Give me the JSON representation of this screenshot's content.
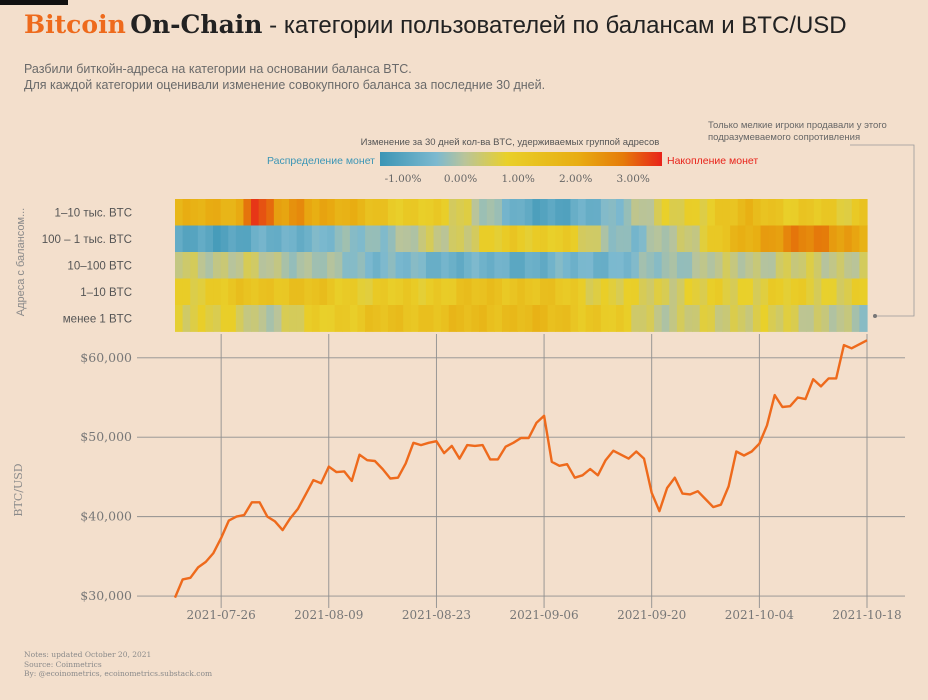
{
  "header": {
    "brand_orange": "Bitcoin",
    "brand_dark": "On-Chain",
    "title_rest": " - категории пользователей по балансам и BTC/USD",
    "subtitle_line1": "Разбили биткойн-адреса на категории на основании баланса BTC.",
    "subtitle_line2": "Для каждой категории оценивали изменение совокупного баланса за последние 30 дней."
  },
  "legend": {
    "title": "Изменение за 30 дней кол-ва BTC, удерживаемых группой адресов",
    "left_label": "Распределение монет",
    "right_label": "Накопление монет",
    "ticks": [
      "-1.00%",
      "0.00%",
      "1.00%",
      "2.00%",
      "3.00%"
    ],
    "tick_values": [
      -1,
      0,
      1,
      2,
      3
    ],
    "range": [
      -1.4,
      3.5
    ]
  },
  "annotation": {
    "line1": "Только мелкие игроки продавали у этого",
    "line2": "подразумеваемого сопротивления"
  },
  "colors": {
    "background": "#f3dfcc",
    "line": "#ee6a1c",
    "grid": "#8f8f8f",
    "left_label": "#3b95b5",
    "right_label": "#e8231a",
    "brand": "#ee6a1c"
  },
  "notes": {
    "line1": "Notes: updated October 20, 2021",
    "line2": "Source: Coinmetrics",
    "line3": "By: @ecoinometrics, ecoinometrics.substack.com"
  },
  "chart_data": [
    {
      "type": "heatmap",
      "ylabel": "Адреса с балансом...",
      "rows": [
        "1–10 тыс. BTC",
        "100 – 1 тыс. BTC",
        "10–100 BTC",
        "1–10 BTC",
        "менее 1 BTC"
      ],
      "x_start": "2021-07-20",
      "x_end": "2021-10-18",
      "anchor_days": [
        0,
        8,
        10,
        13,
        16,
        20,
        25,
        30,
        38,
        42,
        45,
        50,
        55,
        60,
        65,
        70,
        75,
        80,
        85,
        87,
        90
      ],
      "values": [
        [
          1.6,
          1.9,
          3.5,
          2.0,
          2.3,
          1.9,
          1.4,
          1.0,
          0.6,
          -0.3,
          -0.9,
          -0.9,
          -0.7,
          0.2,
          0.6,
          1.0,
          1.5,
          1.1,
          1.0,
          0.7,
          1.2
        ],
        [
          -1.0,
          -0.9,
          -0.8,
          -0.7,
          -0.5,
          -0.4,
          -0.2,
          0.1,
          0.6,
          0.8,
          1.0,
          1.0,
          0.3,
          -0.4,
          0.2,
          0.9,
          1.8,
          2.5,
          2.4,
          2.2,
          2.0
        ],
        [
          0.4,
          0.3,
          0.3,
          0.2,
          0.1,
          -0.1,
          -0.3,
          -0.5,
          -0.6,
          -0.7,
          -0.7,
          -0.6,
          -0.5,
          -0.4,
          0.0,
          0.2,
          0.3,
          0.4,
          0.4,
          0.4,
          0.4
        ],
        [
          0.8,
          1.1,
          1.2,
          1.3,
          1.3,
          1.1,
          0.9,
          0.9,
          1.2,
          1.3,
          1.3,
          1.1,
          0.8,
          0.6,
          0.6,
          0.7,
          0.8,
          0.8,
          0.8,
          0.7,
          0.7
        ],
        [
          0.8,
          0.6,
          0.3,
          0.3,
          0.6,
          1.0,
          1.2,
          1.3,
          1.4,
          1.5,
          1.5,
          1.4,
          1.1,
          0.6,
          0.3,
          0.5,
          0.6,
          0.5,
          0.4,
          0.2,
          -0.2
        ]
      ]
    },
    {
      "type": "line",
      "ylabel": "BTC/USD",
      "ylim": [
        29500,
        63500
      ],
      "yticks": [
        30000,
        40000,
        50000,
        60000
      ],
      "ytick_labels": [
        "$30,000",
        "$40,000",
        "$50,000",
        "$60,000"
      ],
      "xticks": [
        "2021-07-26",
        "2021-08-09",
        "2021-08-23",
        "2021-09-06",
        "2021-09-20",
        "2021-10-04",
        "2021-10-18"
      ],
      "x_start": "2021-07-20",
      "x_end": "2021-10-18",
      "grid": true,
      "series": [
        {
          "values": [
            29800,
            32100,
            32300,
            33600,
            34300,
            35400,
            37300,
            39500,
            40000,
            40200,
            41800,
            41800,
            40000,
            39400,
            38300,
            39800,
            41000,
            42800,
            44600,
            44200,
            46300,
            45600,
            45700,
            44500,
            47800,
            47100,
            47000,
            46000,
            44800,
            44900,
            46700,
            49300,
            49000,
            49300,
            49500,
            48000,
            48900,
            47300,
            49000,
            48900,
            49000,
            47200,
            47200,
            48800,
            49300,
            49900,
            49900,
            51800,
            52700,
            46900,
            46400,
            46600,
            44900,
            45200,
            46000,
            45200,
            47100,
            48300,
            47800,
            47300,
            48200,
            47300,
            43000,
            40700,
            43600,
            44900,
            42900,
            42800,
            43200,
            42200,
            41200,
            41500,
            43800,
            48200,
            47700,
            48200,
            49200,
            51500,
            55300,
            53800,
            53900,
            55000,
            54800,
            57300,
            56400,
            57400,
            57400,
            61600,
            61200,
            61700,
            62200
          ]
        }
      ]
    }
  ]
}
